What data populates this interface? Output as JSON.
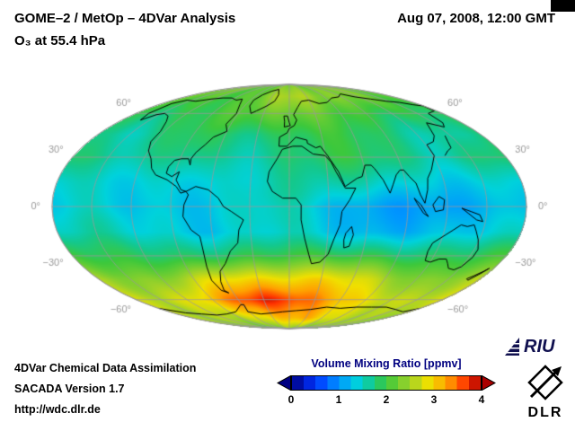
{
  "header": {
    "title_line1": "GOME–2 / MetOp – 4DVar Analysis",
    "title_line2": "O₃ at 55.4 hPa",
    "timestamp": "Aug 07, 2008, 12:00 GMT"
  },
  "footer": {
    "line1": "4DVar Chemical Data Assimilation",
    "line2": "SACADA Version 1.7",
    "line3": "http://wdc.dlr.de"
  },
  "legend": {
    "title": "Volume Mixing Ratio [ppmv]",
    "title_color": "#000080",
    "ticks": [
      "0",
      "1",
      "2",
      "3",
      "4"
    ]
  },
  "logos": {
    "riu_text": "RIU",
    "dlr_text": "DLR"
  },
  "chart_data": {
    "type": "heatmap",
    "projection": "mollweide",
    "title": "GOME–2 / MetOp – 4DVar Analysis",
    "subtitle": "O₃ at 55.4 hPa",
    "timestamp": "Aug 07, 2008, 12:00 GMT",
    "units": "ppmv",
    "colorbar": {
      "label": "Volume Mixing Ratio [ppmv]",
      "range": [
        0,
        4
      ],
      "ticks": [
        0,
        1,
        2,
        3,
        4
      ],
      "stops": [
        [
          0.0,
          "#000082"
        ],
        [
          0.5,
          "#0032ff"
        ],
        [
          1.0,
          "#0096ff"
        ],
        [
          1.4,
          "#00d2dc"
        ],
        [
          1.7,
          "#14c88c"
        ],
        [
          2.0,
          "#3cc83c"
        ],
        [
          2.5,
          "#a0d228"
        ],
        [
          2.9,
          "#f0e000"
        ],
        [
          3.3,
          "#ffa000"
        ],
        [
          3.7,
          "#ff3200"
        ],
        [
          4.0,
          "#aa0000"
        ]
      ]
    },
    "grid": {
      "lats": [
        90,
        75,
        60,
        45,
        30,
        15,
        0,
        -15,
        -30,
        -45,
        -60,
        -75,
        -90
      ],
      "lons": [
        -180,
        -150,
        -120,
        -90,
        -60,
        -30,
        0,
        30,
        60,
        90,
        120,
        150,
        180
      ],
      "values_ppmv": [
        [
          2.3,
          2.3,
          2.3,
          2.3,
          2.3,
          2.3,
          2.3,
          2.3,
          2.3,
          2.3,
          2.3,
          2.3,
          2.3
        ],
        [
          2.2,
          2.1,
          2.1,
          2.2,
          2.3,
          2.4,
          2.5,
          2.5,
          2.4,
          2.3,
          2.2,
          2.1,
          2.2
        ],
        [
          1.9,
          1.8,
          1.9,
          2.0,
          2.1,
          2.1,
          2.2,
          2.2,
          2.1,
          2.0,
          1.9,
          1.9,
          1.9
        ],
        [
          1.7,
          1.6,
          1.7,
          1.8,
          1.7,
          1.8,
          2.0,
          2.0,
          1.9,
          1.8,
          1.7,
          1.6,
          1.7
        ],
        [
          1.8,
          1.7,
          1.6,
          1.7,
          1.6,
          1.7,
          1.9,
          1.9,
          1.8,
          1.7,
          1.6,
          1.7,
          1.8
        ],
        [
          1.5,
          1.5,
          1.4,
          1.5,
          1.4,
          1.5,
          1.6,
          1.6,
          1.5,
          1.4,
          1.3,
          1.4,
          1.5
        ],
        [
          1.4,
          1.4,
          1.3,
          1.4,
          1.3,
          1.4,
          1.4,
          1.3,
          1.2,
          1.1,
          1.0,
          1.2,
          1.4
        ],
        [
          1.5,
          1.5,
          1.4,
          1.4,
          1.3,
          1.4,
          1.5,
          1.4,
          1.3,
          1.2,
          1.2,
          1.3,
          1.5
        ],
        [
          2.0,
          1.9,
          1.9,
          1.8,
          1.9,
          2.0,
          2.1,
          2.0,
          1.9,
          1.8,
          1.8,
          1.9,
          2.0
        ],
        [
          2.6,
          2.5,
          2.4,
          2.6,
          2.9,
          3.0,
          3.0,
          2.9,
          2.7,
          2.5,
          2.4,
          2.5,
          2.6
        ],
        [
          2.8,
          2.7,
          2.8,
          3.0,
          3.5,
          3.8,
          3.7,
          3.4,
          3.1,
          2.9,
          2.8,
          2.7,
          2.8
        ],
        [
          2.5,
          2.4,
          2.5,
          2.6,
          2.8,
          3.0,
          3.2,
          3.3,
          3.0,
          2.7,
          2.5,
          2.4,
          2.5
        ],
        [
          2.2,
          2.2,
          2.2,
          2.2,
          2.2,
          2.2,
          2.2,
          2.2,
          2.2,
          2.2,
          2.2,
          2.2,
          2.2
        ]
      ]
    },
    "graticule": {
      "parallels": [
        60,
        30,
        0,
        -30,
        -60
      ],
      "meridian_step_deg": 30,
      "color": "#999999",
      "labels": [
        {
          "lat": 60,
          "text": "60°"
        },
        {
          "lat": 30,
          "text": "30°"
        },
        {
          "lat": 0,
          "text": "0°"
        },
        {
          "lat": -30,
          "text": "−30°"
        },
        {
          "lat": -60,
          "text": "−60°"
        }
      ]
    },
    "coastlines": [
      [
        [
          -166,
          68
        ],
        [
          -158,
          71
        ],
        [
          -140,
          70
        ],
        [
          -125,
          72
        ],
        [
          -110,
          73
        ],
        [
          -95,
          73
        ],
        [
          -82,
          71
        ],
        [
          -75,
          72
        ],
        [
          -68,
          67
        ],
        [
          -62,
          60
        ],
        [
          -65,
          52
        ],
        [
          -60,
          47
        ],
        [
          -70,
          43
        ],
        [
          -74,
          38
        ],
        [
          -79,
          33
        ],
        [
          -81,
          29
        ],
        [
          -80,
          25
        ],
        [
          -83,
          29
        ],
        [
          -89,
          29
        ],
        [
          -94,
          28
        ],
        [
          -97,
          24
        ],
        [
          -97,
          20
        ],
        [
          -92,
          18
        ],
        [
          -87,
          21
        ],
        [
          -88,
          16
        ],
        [
          -83,
          10
        ],
        [
          -79,
          9
        ],
        [
          -83,
          8
        ],
        [
          -87,
          12
        ],
        [
          -95,
          16
        ],
        [
          -105,
          19
        ],
        [
          -110,
          23
        ],
        [
          -114,
          29
        ],
        [
          -120,
          34
        ],
        [
          -124,
          40
        ],
        [
          -124,
          47
        ],
        [
          -130,
          54
        ],
        [
          -137,
          58
        ],
        [
          -146,
          60
        ],
        [
          -153,
          59
        ],
        [
          -160,
          55
        ],
        [
          -165,
          60
        ],
        [
          -166,
          68
        ]
      ],
      [
        [
          -45,
          60
        ],
        [
          -53,
          66
        ],
        [
          -55,
          71
        ],
        [
          -50,
          76
        ],
        [
          -40,
          80
        ],
        [
          -28,
          82
        ],
        [
          -20,
          76
        ],
        [
          -22,
          70
        ],
        [
          -30,
          66
        ],
        [
          -40,
          62
        ],
        [
          -45,
          60
        ]
      ],
      [
        [
          -79,
          9
        ],
        [
          -72,
          12
        ],
        [
          -62,
          10
        ],
        [
          -54,
          5
        ],
        [
          -50,
          0
        ],
        [
          -44,
          -3
        ],
        [
          -35,
          -8
        ],
        [
          -39,
          -14
        ],
        [
          -41,
          -22
        ],
        [
          -48,
          -27
        ],
        [
          -55,
          -35
        ],
        [
          -62,
          -40
        ],
        [
          -66,
          -47
        ],
        [
          -68,
          -53
        ],
        [
          -65,
          -55
        ],
        [
          -71,
          -53
        ],
        [
          -74,
          -46
        ],
        [
          -72,
          -37
        ],
        [
          -70,
          -25
        ],
        [
          -70,
          -18
        ],
        [
          -76,
          -14
        ],
        [
          -81,
          -6
        ],
        [
          -80,
          1
        ],
        [
          -77,
          7
        ],
        [
          -79,
          9
        ]
      ],
      [
        [
          -6,
          35
        ],
        [
          3,
          37
        ],
        [
          11,
          37
        ],
        [
          20,
          32
        ],
        [
          30,
          31
        ],
        [
          34,
          27
        ],
        [
          37,
          21
        ],
        [
          43,
          11
        ],
        [
          51,
          11
        ],
        [
          46,
          4
        ],
        [
          40,
          -3
        ],
        [
          39,
          -11
        ],
        [
          35,
          -20
        ],
        [
          32,
          -29
        ],
        [
          26,
          -34
        ],
        [
          19,
          -35
        ],
        [
          16,
          -29
        ],
        [
          12,
          -19
        ],
        [
          9,
          -8
        ],
        [
          9,
          1
        ],
        [
          5,
          5
        ],
        [
          -5,
          5
        ],
        [
          -13,
          9
        ],
        [
          -17,
          15
        ],
        [
          -16,
          21
        ],
        [
          -10,
          29
        ],
        [
          -6,
          35
        ]
      ],
      [
        [
          44,
          -16
        ],
        [
          48,
          -12
        ],
        [
          50,
          -17
        ],
        [
          48,
          -24
        ],
        [
          44,
          -25
        ],
        [
          43,
          -20
        ],
        [
          44,
          -16
        ]
      ],
      [
        [
          -9,
          37
        ],
        [
          -9,
          43
        ],
        [
          -2,
          46
        ],
        [
          0,
          49
        ],
        [
          5,
          51
        ],
        [
          8,
          55
        ],
        [
          5,
          59
        ],
        [
          11,
          65
        ],
        [
          18,
          70
        ],
        [
          30,
          71
        ],
        [
          42,
          68
        ],
        [
          55,
          69
        ],
        [
          70,
          73
        ],
        [
          85,
          74
        ],
        [
          100,
          77
        ],
        [
          113,
          74
        ],
        [
          130,
          72
        ],
        [
          145,
          70
        ],
        [
          160,
          69
        ],
        [
          170,
          67
        ],
        [
          179,
          66
        ],
        [
          177,
          62
        ],
        [
          163,
          60
        ],
        [
          160,
          53
        ],
        [
          155,
          50
        ],
        [
          143,
          53
        ],
        [
          135,
          44
        ],
        [
          129,
          40
        ],
        [
          121,
          38
        ],
        [
          121,
          31
        ],
        [
          113,
          22
        ],
        [
          108,
          17
        ],
        [
          106,
          10
        ],
        [
          103,
          2
        ],
        [
          100,
          7
        ],
        [
          98,
          14
        ],
        [
          94,
          18
        ],
        [
          91,
          22
        ],
        [
          88,
          22
        ],
        [
          84,
          19
        ],
        [
          80,
          13
        ],
        [
          77,
          8
        ],
        [
          73,
          16
        ],
        [
          68,
          23
        ],
        [
          66,
          25
        ],
        [
          61,
          25
        ],
        [
          57,
          18
        ],
        [
          53,
          17
        ],
        [
          45,
          13
        ],
        [
          43,
          12
        ],
        [
          39,
          21
        ],
        [
          34,
          28
        ],
        [
          32,
          31
        ],
        [
          27,
          37
        ],
        [
          23,
          36
        ],
        [
          16,
          39
        ],
        [
          16,
          41
        ],
        [
          6,
          43
        ],
        [
          -2,
          37
        ],
        [
          -9,
          37
        ]
      ],
      [
        [
          -5,
          50
        ],
        [
          -5,
          54
        ],
        [
          -6,
          58
        ],
        [
          -2,
          58
        ],
        [
          0,
          53
        ],
        [
          1,
          51
        ],
        [
          -5,
          50
        ]
      ],
      [
        [
          130,
          31
        ],
        [
          135,
          34
        ],
        [
          140,
          36
        ],
        [
          142,
          40
        ],
        [
          145,
          44
        ]
      ],
      [
        [
          109,
          1
        ],
        [
          114,
          6
        ],
        [
          118,
          4
        ],
        [
          117,
          -2
        ],
        [
          111,
          -3
        ],
        [
          109,
          1
        ]
      ],
      [
        [
          95,
          5
        ],
        [
          100,
          1
        ],
        [
          104,
          -4
        ],
        [
          106,
          -6
        ],
        [
          102,
          -4
        ],
        [
          97,
          2
        ],
        [
          95,
          5
        ]
      ],
      [
        [
          131,
          -1
        ],
        [
          138,
          -3
        ],
        [
          145,
          -5
        ],
        [
          148,
          -9
        ],
        [
          143,
          -8
        ],
        [
          136,
          -4
        ],
        [
          131,
          -1
        ]
      ],
      [
        [
          114,
          -22
        ],
        [
          113,
          -27
        ],
        [
          115,
          -33
        ],
        [
          120,
          -34
        ],
        [
          126,
          -32
        ],
        [
          132,
          -32
        ],
        [
          136,
          -35
        ],
        [
          140,
          -38
        ],
        [
          146,
          -39
        ],
        [
          150,
          -37
        ],
        [
          153,
          -31
        ],
        [
          153,
          -26
        ],
        [
          149,
          -20
        ],
        [
          145,
          -15
        ],
        [
          142,
          -11
        ],
        [
          137,
          -12
        ],
        [
          132,
          -11
        ],
        [
          127,
          -14
        ],
        [
          122,
          -17
        ],
        [
          114,
          -22
        ]
      ],
      [
        [
          167,
          -45
        ],
        [
          170,
          -43
        ],
        [
          174,
          -40
        ],
        [
          176,
          -38
        ],
        [
          174,
          -41
        ],
        [
          170,
          -46
        ],
        [
          167,
          -45
        ]
      ],
      [
        [
          -180,
          -67
        ],
        [
          -160,
          -71
        ],
        [
          -140,
          -72
        ],
        [
          -120,
          -73
        ],
        [
          -100,
          -72
        ],
        [
          -80,
          -70
        ],
        [
          -62,
          -64
        ],
        [
          -58,
          -64
        ],
        [
          -62,
          -70
        ],
        [
          -45,
          -72
        ],
        [
          -25,
          -71
        ],
        [
          -10,
          -70
        ],
        [
          10,
          -69
        ],
        [
          30,
          -68
        ],
        [
          50,
          -66
        ],
        [
          70,
          -67
        ],
        [
          90,
          -66
        ],
        [
          110,
          -66
        ],
        [
          130,
          -66
        ],
        [
          150,
          -68
        ],
        [
          170,
          -70
        ],
        [
          180,
          -67
        ]
      ]
    ]
  }
}
